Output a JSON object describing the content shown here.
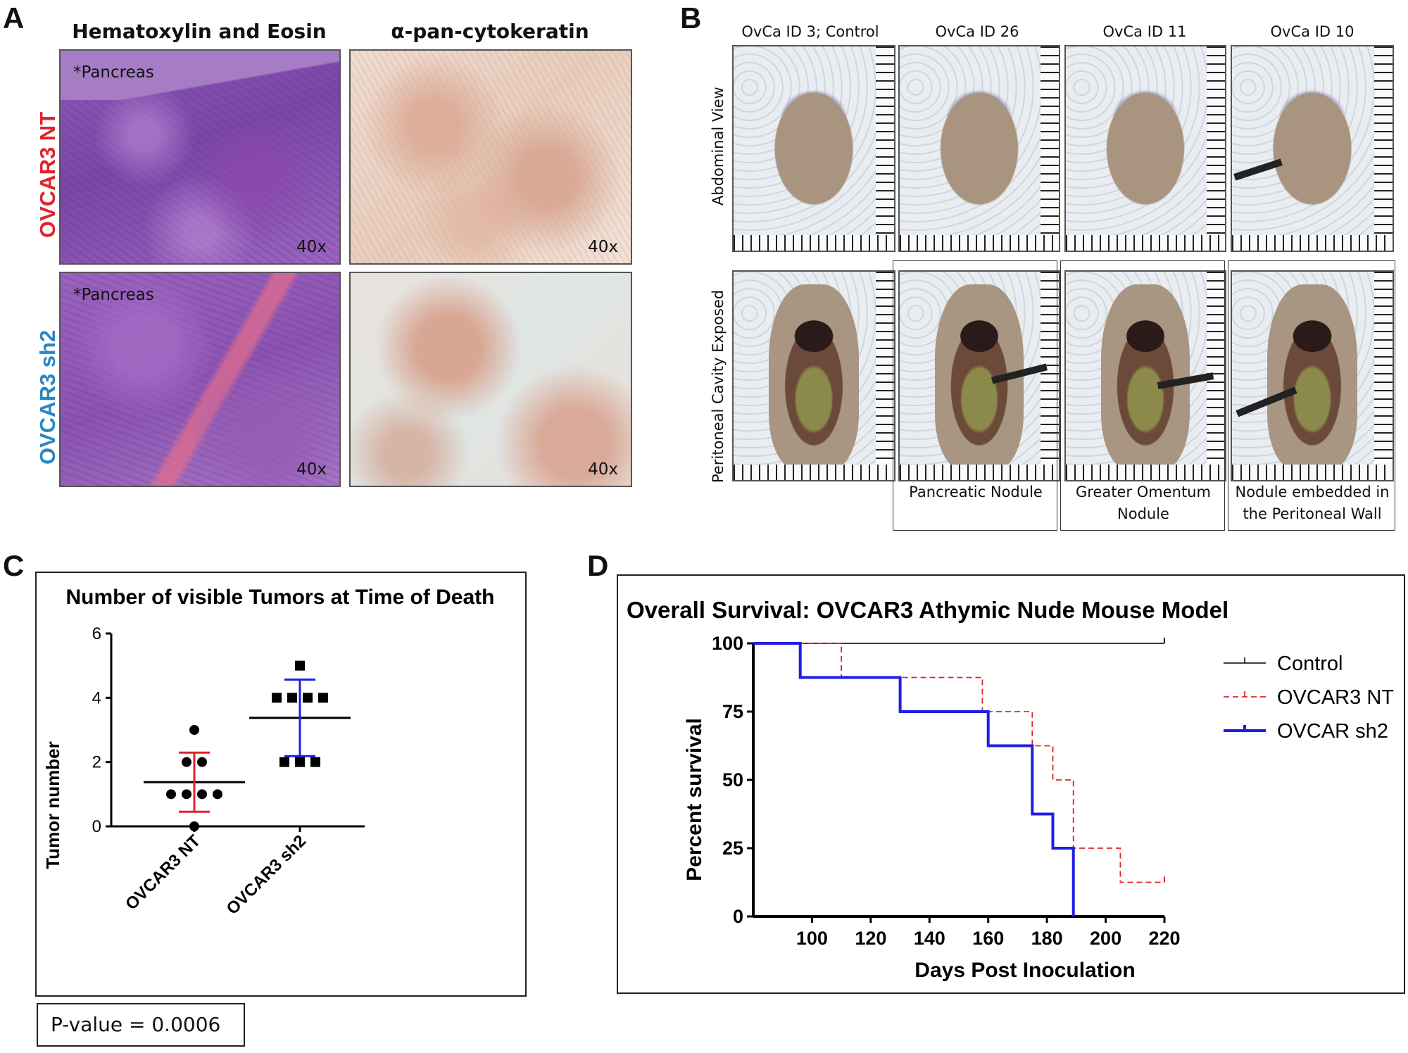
{
  "panelA": {
    "letter": "A",
    "col_headers": [
      "Hematoxylin and Eosin",
      "α-pan-cytokeratin"
    ],
    "row_labels": [
      {
        "text": "OVCAR3 NT",
        "color": "#e0242b"
      },
      {
        "text": "OVCAR3 sh2",
        "color": "#2a86c2"
      }
    ],
    "pancreas_label": "*Pancreas",
    "magnification": "40x"
  },
  "panelB": {
    "letter": "B",
    "col_headers": [
      "OvCa ID 3; Control",
      "OvCa ID 26",
      "OvCa ID 11",
      "OvCa ID 10"
    ],
    "row_labels": [
      "Abdominal View",
      "Peritoneal Cavity Exposed"
    ],
    "captions": [
      [
        "Pancreatic Nodule"
      ],
      [
        "Greater Omentum",
        "Nodule"
      ],
      [
        "Nodule embedded in",
        "the Peritoneal Wall"
      ]
    ]
  },
  "panelC": {
    "letter": "C",
    "p_value": "P-value = 0.0006"
  },
  "panelD": {
    "letter": "D"
  },
  "chart_data": [
    {
      "type": "scatter",
      "title": "Number of visible Tumors at Time of Death",
      "ylabel": "Tumor number",
      "xlabel": "",
      "ylim": [
        0,
        6
      ],
      "yticks": [
        0,
        2,
        4,
        6
      ],
      "categories": [
        "OVCAR3 NT",
        "OVCAR3 sh2"
      ],
      "series": [
        {
          "name": "OVCAR3 NT",
          "color": "#e0242b",
          "marker": "circle",
          "values": [
            3,
            2,
            1,
            1,
            1,
            1,
            2,
            0
          ],
          "mean": 1.375,
          "sd": 0.92
        },
        {
          "name": "OVCAR3 sh2",
          "color": "#1f1fe0",
          "marker": "square",
          "values": [
            5,
            4,
            4,
            4,
            4,
            2,
            2,
            2
          ],
          "mean": 3.375,
          "sd": 1.19
        }
      ]
    },
    {
      "type": "line",
      "title": "Overall Survival: OVCAR3 Athymic Nude Mouse Model",
      "xlabel": "Days Post Inoculation",
      "ylabel": "Percent survival",
      "xlim": [
        80,
        220
      ],
      "ylim": [
        0,
        100
      ],
      "xticks": [
        100,
        120,
        140,
        160,
        180,
        200,
        220
      ],
      "yticks": [
        0,
        25,
        50,
        75,
        100
      ],
      "legend_position": "right",
      "series": [
        {
          "name": "Control",
          "color": "#000000",
          "style": "solid",
          "points": [
            [
              80,
              100
            ],
            [
              220,
              100
            ]
          ]
        },
        {
          "name": "OVCAR3 NT",
          "color": "#e0242b",
          "style": "dashed",
          "points": [
            [
              80,
              100
            ],
            [
              110,
              100
            ],
            [
              110,
              87.5
            ],
            [
              158,
              87.5
            ],
            [
              158,
              75
            ],
            [
              175,
              75
            ],
            [
              175,
              62.5
            ],
            [
              182,
              62.5
            ],
            [
              182,
              50
            ],
            [
              189,
              50
            ],
            [
              189,
              25
            ],
            [
              205,
              25
            ],
            [
              205,
              12.5
            ],
            [
              220,
              12.5
            ]
          ]
        },
        {
          "name": "OVCAR sh2",
          "color": "#1f1fe0",
          "style": "solid",
          "points": [
            [
              80,
              100
            ],
            [
              96,
              100
            ],
            [
              96,
              87.5
            ],
            [
              130,
              87.5
            ],
            [
              130,
              75
            ],
            [
              160,
              75
            ],
            [
              160,
              62.5
            ],
            [
              175,
              62.5
            ],
            [
              175,
              37.5
            ],
            [
              182,
              37.5
            ],
            [
              182,
              25
            ],
            [
              189,
              25
            ],
            [
              189,
              0
            ]
          ]
        }
      ]
    }
  ]
}
